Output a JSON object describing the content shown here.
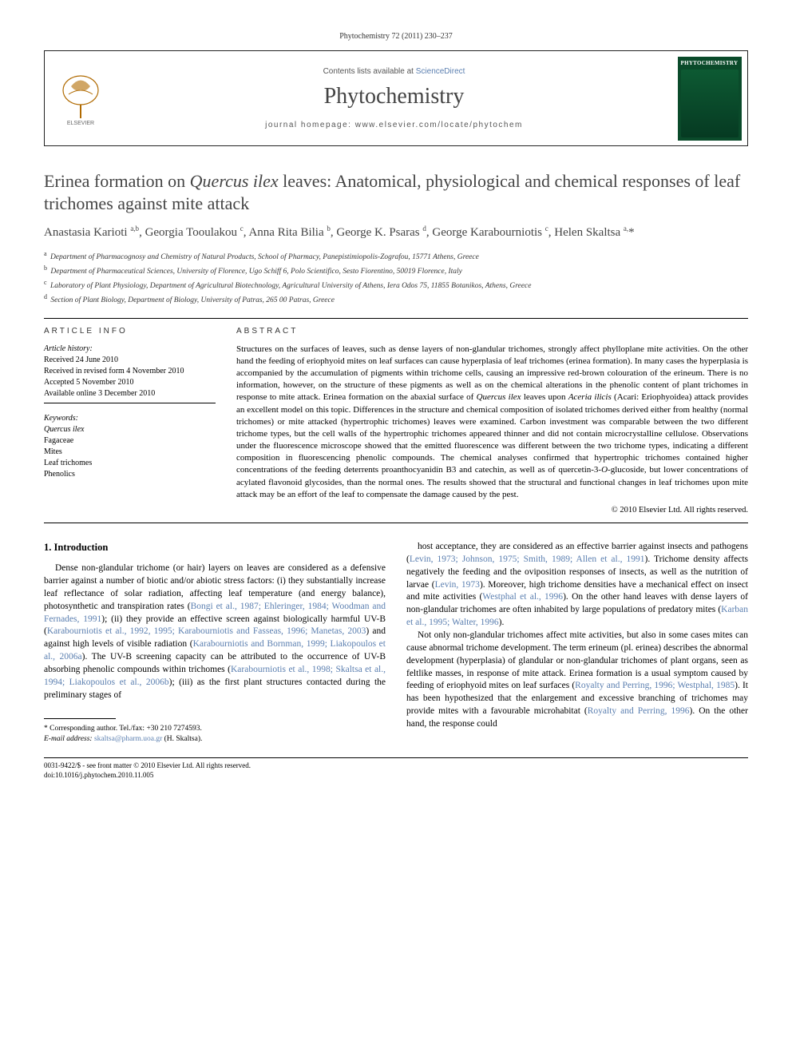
{
  "top_citation": "Phytochemistry 72 (2011) 230–237",
  "header": {
    "contents_line_pre": "Contents lists available at ",
    "contents_line_link": "ScienceDirect",
    "journal_title": "Phytochemistry",
    "homepage_label": "journal homepage: www.elsevier.com/locate/phytochem",
    "cover_title": "PHYTOCHEMISTRY"
  },
  "title_html": "Erinea formation on <em>Quercus ilex</em> leaves: Anatomical, physiological and chemical responses of leaf trichomes against mite attack",
  "authors_html": "Anastasia Karioti <sup>a,b</sup>, Georgia Tooulakou <sup>c</sup>, Anna Rita Bilia <sup>b</sup>, George K. Psaras <sup>d</sup>, George Karabourniotis <sup>c</sup>, Helen Skaltsa <sup>a,</sup>*",
  "affiliations": [
    "Department of Pharmacognosy and Chemistry of Natural Products, School of Pharmacy, Panepistimiopolis-Zografou, 15771 Athens, Greece",
    "Department of Pharmaceutical Sciences, University of Florence, Ugo Schiff 6, Polo Scientifico, Sesto Fiorentino, 50019 Florence, Italy",
    "Laboratory of Plant Physiology, Department of Agricultural Biotechnology, Agricultural University of Athens, Iera Odos 75, 11855 Botanikos, Athens, Greece",
    "Section of Plant Biology, Department of Biology, University of Patras, 265 00 Patras, Greece"
  ],
  "aff_sups": [
    "a",
    "b",
    "c",
    "d"
  ],
  "article_info_heading": "ARTICLE INFO",
  "abstract_heading": "ABSTRACT",
  "history": {
    "label": "Article history:",
    "received": "Received 24 June 2010",
    "revised": "Received in revised form 4 November 2010",
    "accepted": "Accepted 5 November 2010",
    "online": "Available online 3 December 2010"
  },
  "keywords_label": "Keywords:",
  "keywords": [
    "Quercus ilex",
    "Fagaceae",
    "Mites",
    "Leaf trichomes",
    "Phenolics"
  ],
  "abstract_html": "Structures on the surfaces of leaves, such as dense layers of non-glandular trichomes, strongly affect phylloplane mite activities. On the other hand the feeding of eriophyoid mites on leaf surfaces can cause hyperplasia of leaf trichomes (erinea formation). In many cases the hyperplasia is accompanied by the accumulation of pigments within trichome cells, causing an impressive red-brown colouration of the erineum. There is no information, however, on the structure of these pigments as well as on the chemical alterations in the phenolic content of plant trichomes in response to mite attack. Erinea formation on the abaxial surface of <em>Quercus ilex</em> leaves upon <em>Aceria ilicis</em> (Acari: Eriophyoidea) attack provides an excellent model on this topic. Differences in the structure and chemical composition of isolated trichomes derived either from healthy (normal trichomes) or mite attacked (hypertrophic trichomes) leaves were examined. Carbon investment was comparable between the two different trichome types, but the cell walls of the hypertrophic trichomes appeared thinner and did not contain microcrystalline cellulose. Observations under the fluorescence microscope showed that the emitted fluorescence was different between the two trichome types, indicating a different composition in fluorescencing phenolic compounds. The chemical analyses confirmed that hypertrophic trichomes contained higher concentrations of the feeding deterrents proanthocyanidin B3 and catechin, as well as of quercetin-3-<em>O</em>-glucoside, but lower concentrations of acylated flavonoid glycosides, than the normal ones. The results showed that the structural and functional changes in leaf trichomes upon mite attack may be an effort of the leaf to compensate the damage caused by the pest.",
  "copyright": "© 2010 Elsevier Ltd. All rights reserved.",
  "intro_heading": "1. Introduction",
  "col1_html": "Dense non-glandular trichome (or hair) layers on leaves are considered as a defensive barrier against a number of biotic and/or abiotic stress factors: (i) they substantially increase leaf reflectance of solar radiation, affecting leaf temperature (and energy balance), photosynthetic and transpiration rates (<span class='ref'>Bongi et al., 1987; Ehleringer, 1984; Woodman and Fernades, 1991</span>); (ii) they provide an effective screen against biologically harmful UV-B (<span class='ref'>Karabourniotis et al., 1992, 1995; Karabourniotis and Fasseas, 1996; Manetas, 2003</span>) and against high levels of visible radiation (<span class='ref'>Karabourniotis and Bornman, 1999; Liakopoulos et al., 2006a</span>). The UV-B screening capacity can be attributed to the occurrence of UV-B absorbing phenolic compounds within trichomes (<span class='ref'>Karabourniotis et al., 1998; Skaltsa et al., 1994; Liakopoulos et al., 2006b</span>); (iii) as the first plant structures contacted during the preliminary stages of",
  "col2_html": "host acceptance, they are considered as an effective barrier against insects and pathogens (<span class='ref'>Levin, 1973; Johnson, 1975; Smith, 1989; Allen et al., 1991</span>). Trichome density affects negatively the feeding and the oviposition responses of insects, as well as the nutrition of larvae (<span class='ref'>Levin, 1973</span>). Moreover, high trichome densities have a mechanical effect on insect and mite activities (<span class='ref'>Westphal et al., 1996</span>). On the other hand leaves with dense layers of non-glandular trichomes are often inhabited by large populations of predatory mites (<span class='ref'>Karban et al., 1995; Walter, 1996</span>).",
  "col2b_html": "Not only non-glandular trichomes affect mite activities, but also in some cases mites can cause abnormal trichome development. The term erineum (pl. erinea) describes the abnormal development (hyperplasia) of glandular or non-glandular trichomes of plant organs, seen as feltlike masses, in response of mite attack. Erinea formation is a usual symptom caused by feeding of eriophyoid mites on leaf surfaces (<span class='ref'>Royalty and Perring, 1996; Westphal, 1985</span>). It has been hypothesized that the enlargement and excessive branching of trichomes may provide mites with a favourable microhabitat (<span class='ref'>Royalty and Perring, 1996</span>). On the other hand, the response could",
  "footnote": {
    "corr": "* Corresponding author. Tel./fax: +30 210 7274593.",
    "email_lbl": "E-mail address:",
    "email": "skaltsa@pharm.uoa.gr",
    "email_tail": " (H. Skaltsa)."
  },
  "footer": {
    "line1": "0031-9422/$ - see front matter © 2010 Elsevier Ltd. All rights reserved.",
    "line2": "doi:10.1016/j.phytochem.2010.11.005"
  },
  "colors": {
    "link": "#5b7fb0",
    "text": "#000000",
    "muted": "#444444"
  }
}
